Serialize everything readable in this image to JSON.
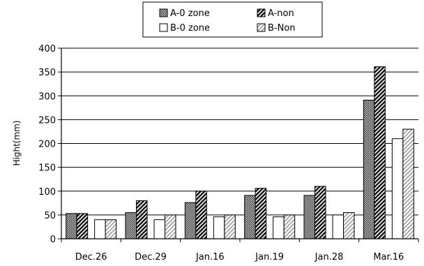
{
  "chart_data": {
    "type": "bar",
    "title": "",
    "xlabel": "",
    "ylabel": "Hight(mm)",
    "ylim": [
      0,
      400
    ],
    "yticks": [
      0,
      50,
      100,
      150,
      200,
      250,
      300,
      350,
      400
    ],
    "grid": "horizontal",
    "legend_position": "top",
    "categories": [
      "Dec.26",
      "Dec.29",
      "Jan.16",
      "Jan.19",
      "Jan.28",
      "Mar.16"
    ],
    "series": [
      {
        "name": "A-0 zone",
        "values": [
          53,
          55,
          76,
          91,
          91,
          291
        ],
        "pattern": "crosshatch"
      },
      {
        "name": "A-non",
        "values": [
          53,
          80,
          100,
          106,
          110,
          361
        ],
        "pattern": "diagonal-dark"
      },
      {
        "name": "B-0 zone",
        "values": [
          40,
          40,
          46,
          46,
          50,
          210
        ],
        "pattern": "white"
      },
      {
        "name": "B-Non",
        "values": [
          40,
          50,
          50,
          50,
          55,
          230
        ],
        "pattern": "diagonal-light"
      }
    ]
  }
}
